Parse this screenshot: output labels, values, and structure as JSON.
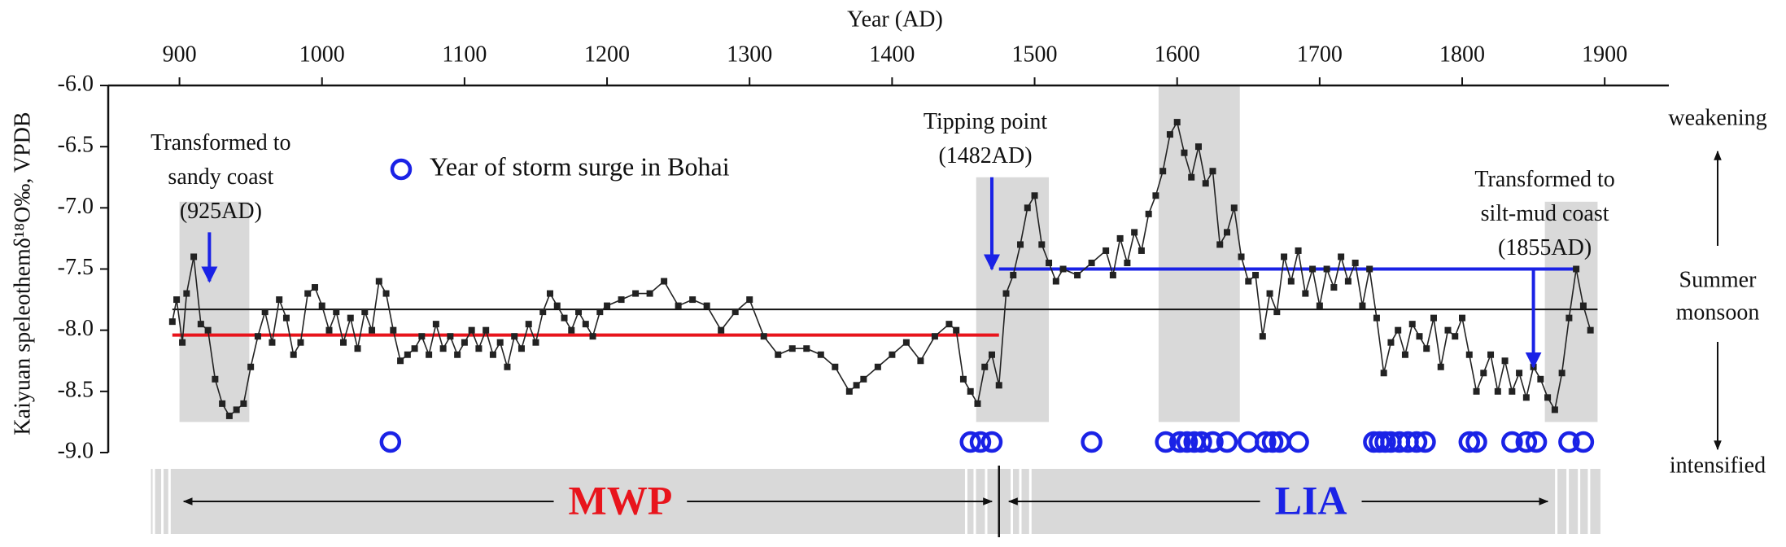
{
  "chart_data": {
    "type": "line",
    "x_label": "Year (AD)",
    "y_label": "Kaiyuan speleothemδ¹⁸O‰, VPDB",
    "xlim": [
      850,
      1945
    ],
    "xticks": [
      900,
      1000,
      1100,
      1200,
      1300,
      1400,
      1500,
      1600,
      1700,
      1800,
      1900
    ],
    "ylim": [
      -9.0,
      -6.0
    ],
    "yticks": [
      {
        "value": -6.0,
        "label": "-6.0"
      },
      {
        "value": -6.5,
        "label": "-6.5"
      },
      {
        "value": -7.0,
        "label": "-7.0"
      },
      {
        "value": -7.5,
        "label": "-7.5"
      },
      {
        "value": -8.0,
        "label": "-8.0"
      },
      {
        "value": -8.5,
        "label": "-8.5"
      },
      {
        "value": -9.0,
        "label": "-9.0"
      }
    ],
    "color": "#222222",
    "x": [
      895,
      898,
      902,
      905,
      910,
      915,
      920,
      925,
      930,
      935,
      940,
      945,
      950,
      955,
      960,
      965,
      970,
      975,
      980,
      985,
      990,
      995,
      1000,
      1005,
      1010,
      1015,
      1020,
      1025,
      1030,
      1035,
      1040,
      1045,
      1050,
      1055,
      1060,
      1065,
      1070,
      1075,
      1080,
      1085,
      1090,
      1095,
      1100,
      1105,
      1110,
      1115,
      1120,
      1125,
      1130,
      1135,
      1140,
      1145,
      1150,
      1155,
      1160,
      1165,
      1170,
      1175,
      1180,
      1185,
      1190,
      1195,
      1200,
      1210,
      1220,
      1230,
      1240,
      1250,
      1260,
      1270,
      1280,
      1290,
      1300,
      1310,
      1320,
      1330,
      1340,
      1350,
      1360,
      1370,
      1375,
      1380,
      1390,
      1400,
      1410,
      1420,
      1430,
      1440,
      1445,
      1450,
      1455,
      1460,
      1465,
      1470,
      1475,
      1480,
      1485,
      1490,
      1495,
      1500,
      1505,
      1510,
      1515,
      1520,
      1530,
      1540,
      1550,
      1555,
      1560,
      1565,
      1570,
      1575,
      1580,
      1585,
      1590,
      1595,
      1600,
      1605,
      1610,
      1615,
      1620,
      1625,
      1630,
      1635,
      1640,
      1645,
      1650,
      1655,
      1660,
      1665,
      1670,
      1675,
      1680,
      1685,
      1690,
      1695,
      1700,
      1705,
      1710,
      1715,
      1720,
      1725,
      1730,
      1735,
      1740,
      1745,
      1750,
      1755,
      1760,
      1765,
      1770,
      1775,
      1780,
      1785,
      1790,
      1795,
      1800,
      1805,
      1810,
      1815,
      1820,
      1825,
      1830,
      1835,
      1840,
      1845,
      1850,
      1855,
      1860,
      1865,
      1870,
      1875,
      1880,
      1885,
      1890
    ],
    "values": [
      -7.93,
      -7.75,
      -8.1,
      -7.7,
      -7.4,
      -7.95,
      -8.0,
      -8.4,
      -8.6,
      -8.7,
      -8.65,
      -8.6,
      -8.3,
      -8.05,
      -7.85,
      -8.1,
      -7.75,
      -7.9,
      -8.2,
      -8.1,
      -7.7,
      -7.65,
      -7.8,
      -8.0,
      -7.85,
      -8.1,
      -7.9,
      -8.15,
      -7.85,
      -8.0,
      -7.6,
      -7.7,
      -8.0,
      -8.25,
      -8.2,
      -8.15,
      -8.05,
      -8.2,
      -7.95,
      -8.15,
      -8.05,
      -8.2,
      -8.1,
      -8.0,
      -8.15,
      -8.0,
      -8.2,
      -8.1,
      -8.3,
      -8.05,
      -8.15,
      -7.95,
      -8.1,
      -7.85,
      -7.7,
      -7.8,
      -7.9,
      -8.0,
      -7.85,
      -7.95,
      -8.05,
      -7.85,
      -7.8,
      -7.75,
      -7.7,
      -7.7,
      -7.6,
      -7.8,
      -7.75,
      -7.8,
      -8.0,
      -7.85,
      -7.75,
      -8.05,
      -8.2,
      -8.15,
      -8.15,
      -8.2,
      -8.3,
      -8.5,
      -8.45,
      -8.4,
      -8.3,
      -8.2,
      -8.1,
      -8.25,
      -8.05,
      -7.95,
      -8.0,
      -8.4,
      -8.5,
      -8.6,
      -8.3,
      -8.2,
      -8.45,
      -7.7,
      -7.55,
      -7.3,
      -7.0,
      -6.9,
      -7.3,
      -7.45,
      -7.6,
      -7.5,
      -7.55,
      -7.45,
      -7.35,
      -7.55,
      -7.25,
      -7.45,
      -7.2,
      -7.35,
      -7.05,
      -6.9,
      -6.7,
      -6.4,
      -6.3,
      -6.55,
      -6.75,
      -6.5,
      -6.8,
      -6.7,
      -7.3,
      -7.2,
      -7.0,
      -7.4,
      -7.6,
      -7.55,
      -8.05,
      -7.7,
      -7.85,
      -7.4,
      -7.6,
      -7.35,
      -7.7,
      -7.5,
      -7.8,
      -7.5,
      -7.65,
      -7.4,
      -7.6,
      -7.45,
      -7.8,
      -7.5,
      -7.9,
      -8.35,
      -8.1,
      -8.0,
      -8.2,
      -7.95,
      -8.05,
      -8.15,
      -7.9,
      -8.3,
      -8.0,
      -8.05,
      -7.9,
      -8.2,
      -8.5,
      -8.35,
      -8.2,
      -8.5,
      -8.25,
      -8.5,
      -8.35,
      -8.55,
      -8.3,
      -8.4,
      -8.55,
      -8.65,
      -8.35,
      -7.9,
      -7.5,
      -7.8,
      -8.0
    ],
    "reference_lines": [
      {
        "value": -7.83,
        "start": 895,
        "end": 1895,
        "color": "#111111"
      },
      {
        "value": -8.04,
        "start": 895,
        "end": 1475,
        "color": "#e8141c"
      },
      {
        "value": -7.5,
        "start": 1475,
        "end": 1880,
        "color": "#1a22e6"
      }
    ],
    "shaded_periods": [
      {
        "start": 900,
        "end": 949,
        "top": -6.95,
        "bottom": -8.75
      },
      {
        "start": 1459,
        "end": 1510,
        "top": -6.75,
        "bottom": -8.75
      },
      {
        "start": 1587,
        "end": 1644,
        "top": -6.0,
        "bottom": -8.75
      },
      {
        "start": 1858,
        "end": 1895,
        "top": -6.95,
        "bottom": -8.75
      }
    ],
    "storm_surge": {
      "name": "Year of storm surge in Bohai",
      "color": "#1a22e6",
      "years": [
        1048,
        1455,
        1462,
        1470,
        1540,
        1592,
        1602,
        1607,
        1612,
        1617,
        1625,
        1635,
        1650,
        1662,
        1667,
        1672,
        1685,
        1738,
        1742,
        1746,
        1750,
        1756,
        1762,
        1768,
        1774,
        1805,
        1810,
        1835,
        1845,
        1852,
        1875,
        1885
      ]
    },
    "annotations": [
      {
        "lines": [
          "Transformed to",
          "sandy coast",
          "(925AD)"
        ],
        "x": 921,
        "arrow_from": -7.2,
        "arrow_to": -7.6
      },
      {
        "lines": [
          "Tipping point",
          "(1482AD)"
        ],
        "x": 1470,
        "arrow_from": -6.75,
        "arrow_to": -7.5
      },
      {
        "lines": [
          "Transformed to",
          "silt-mud coast",
          "(1855AD)"
        ],
        "x": 1850,
        "arrow_from": -7.5,
        "arrow_to": -8.3
      }
    ],
    "eras": [
      {
        "label": "MWP",
        "start": 903,
        "end": 1470,
        "color": "#e8141c"
      },
      {
        "label": "LIA",
        "start": 1482,
        "end": 1860,
        "color": "#1a22e6"
      }
    ],
    "era_divider": 1475,
    "monsoon_labels": {
      "top": "weakening",
      "middle": [
        "Summer",
        "monsoon"
      ],
      "bottom": "intensified"
    }
  }
}
